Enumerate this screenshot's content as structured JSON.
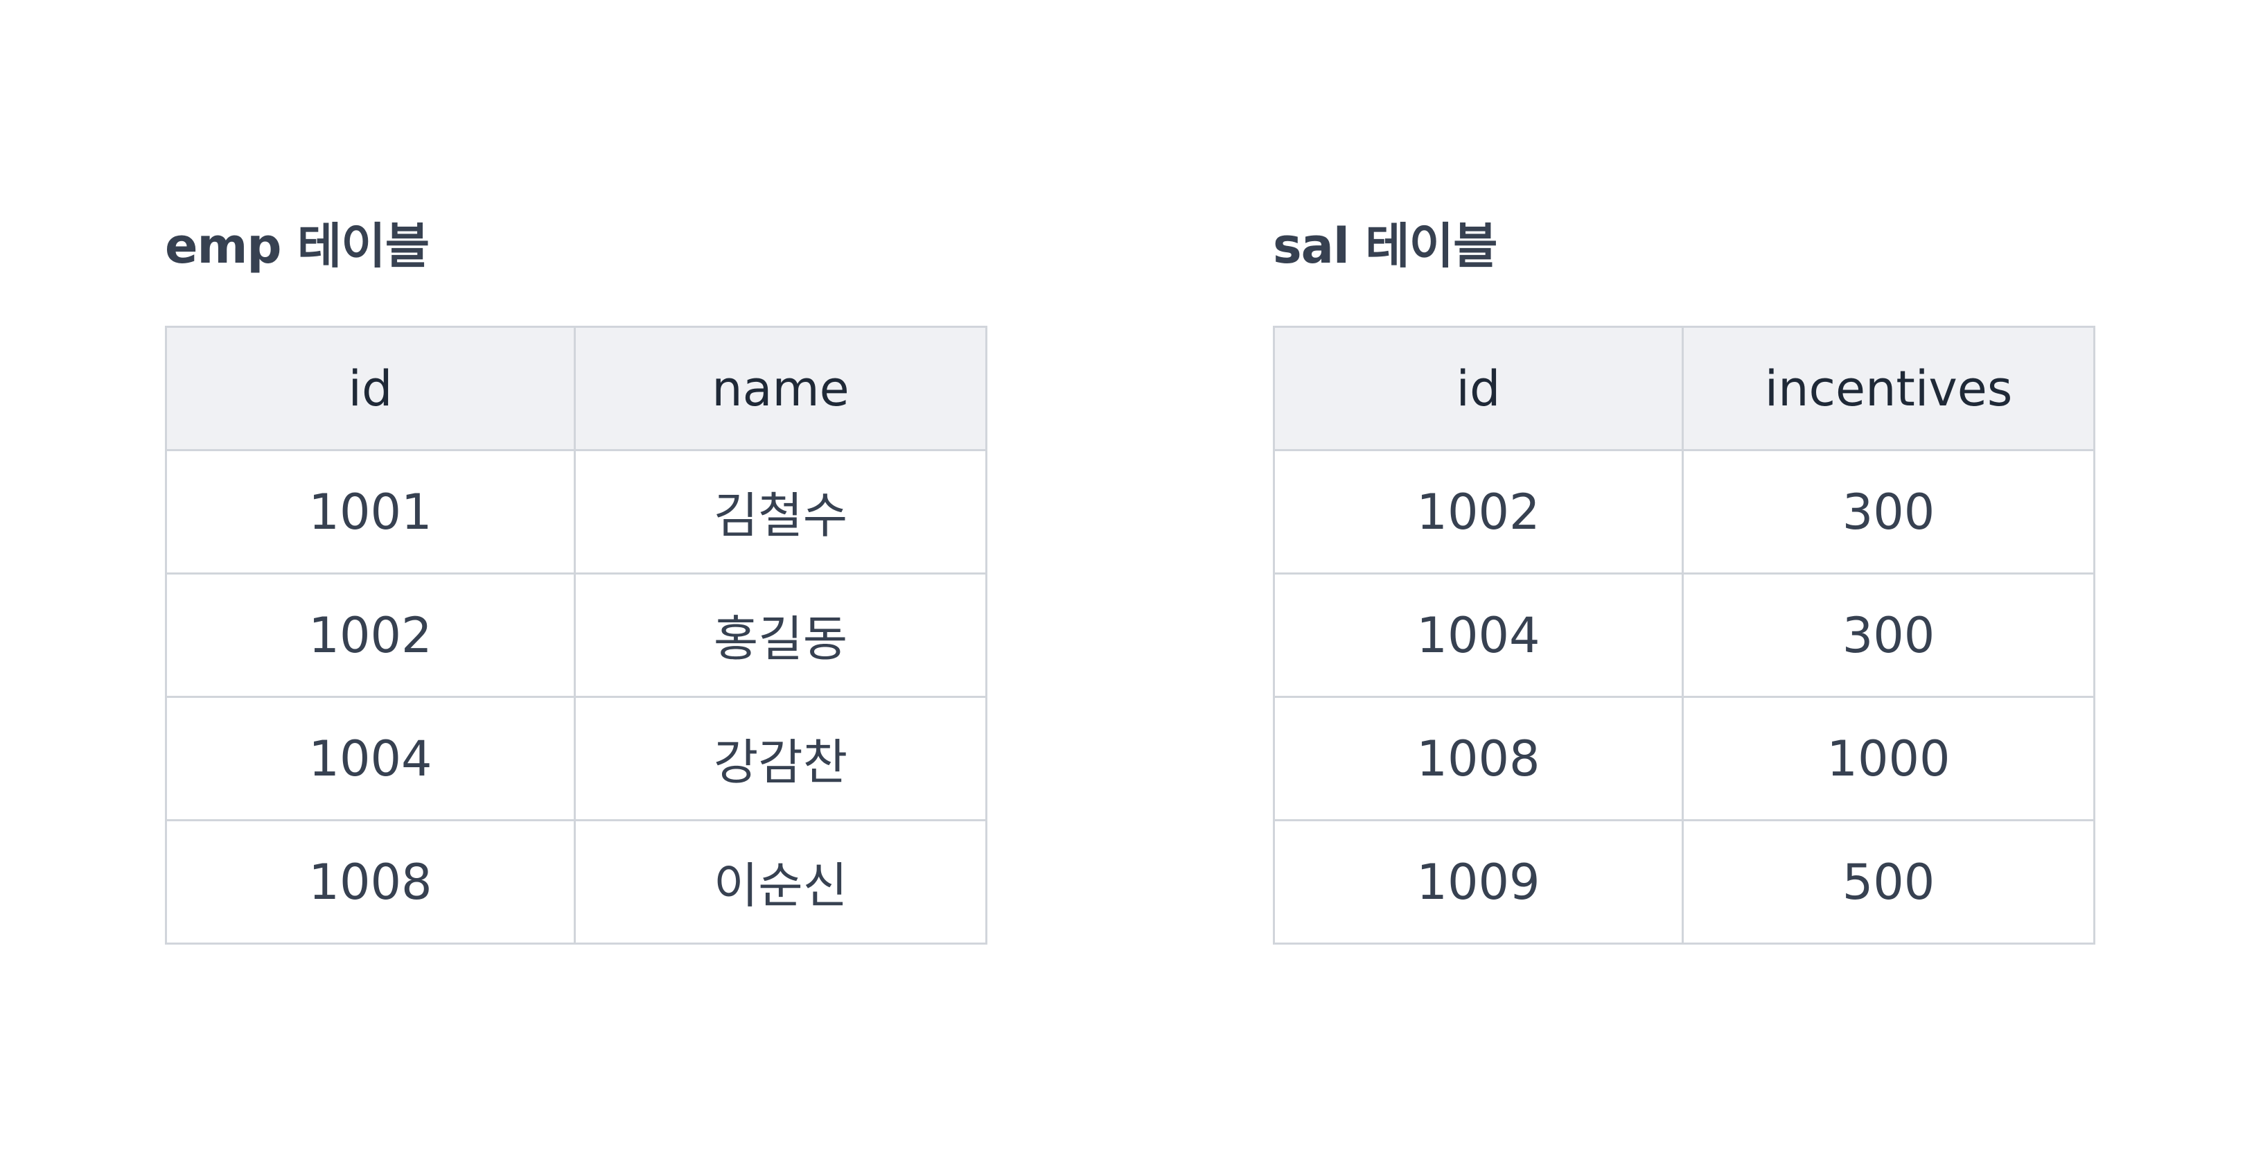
{
  "tables": [
    {
      "title": "emp 테이블",
      "headers": [
        "id",
        "name"
      ],
      "rows": [
        [
          "1001",
          "김철수"
        ],
        [
          "1002",
          "홍길동"
        ],
        [
          "1004",
          "강감찬"
        ],
        [
          "1008",
          "이순신"
        ]
      ]
    },
    {
      "title": "sal 테이블",
      "headers": [
        "id",
        "incentives"
      ],
      "rows": [
        [
          "1002",
          "300"
        ],
        [
          "1004",
          "300"
        ],
        [
          "1008",
          "1000"
        ],
        [
          "1009",
          "500"
        ]
      ]
    }
  ],
  "colors": {
    "text": "#374151",
    "header_bg": "#f0f1f4",
    "border": "#d1d5db"
  }
}
